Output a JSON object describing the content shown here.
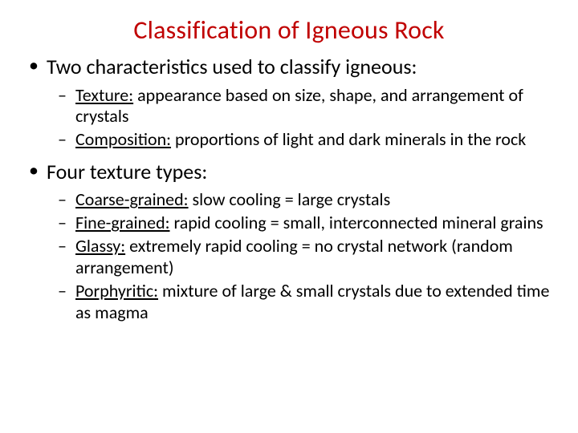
{
  "colors": {
    "title": "#c00000",
    "body": "#000000",
    "background": "#ffffff"
  },
  "typography": {
    "title_fontsize": 32,
    "level1_fontsize": 26,
    "level2_fontsize": 22,
    "font_family": "Calibri"
  },
  "title": "Classification of Igneous Rock",
  "bullets": [
    {
      "text": "Two characteristics used to classify igneous:",
      "sub": [
        {
          "term": "Texture:",
          "rest": " appearance based on size, shape, and arrangement of crystals"
        },
        {
          "term": "Composition:",
          "rest": " proportions of light and dark minerals in the rock"
        }
      ]
    },
    {
      "text": "Four texture types:",
      "sub": [
        {
          "term": "Coarse-grained:",
          "rest": " slow cooling = large crystals"
        },
        {
          "term": "Fine-grained:",
          "rest": " rapid cooling = small, interconnected mineral grains"
        },
        {
          "term": "Glassy:",
          "rest": " extremely rapid cooling = no crystal network (random arrangement)"
        },
        {
          "term": "Porphyritic:",
          "rest": " mixture of large & small crystals due to extended time as magma"
        }
      ]
    }
  ]
}
